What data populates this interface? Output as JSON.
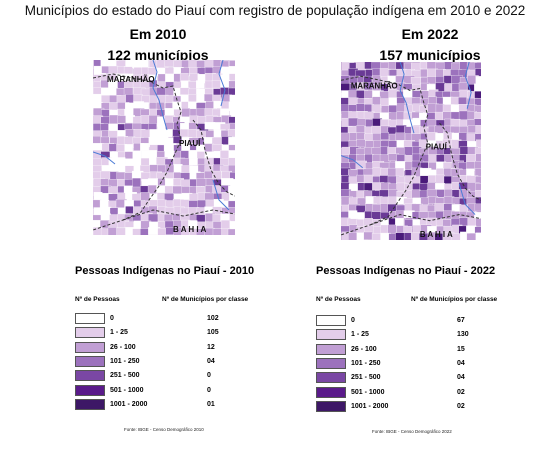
{
  "title": "Municípios do estado do Piauí com registro de população indígena em 2010 e 2022",
  "panels": [
    {
      "year_label": "Em 2010",
      "count_label": "122 municípios",
      "map_labels": {
        "maranhao": "MARANHÃO",
        "piaui": "PIAUÍ",
        "bahia": "B A H I A"
      },
      "legend_title": "Pessoas Indígenas no Piauí - 2010",
      "col_class": "Nº de  Pessoas",
      "col_count": "Nº de  Municípios por classe",
      "rows": [
        {
          "cls": "0",
          "count": "102",
          "color": "#ffffff"
        },
        {
          "cls": "1 - 25",
          "count": "105",
          "color": "#e3cdea"
        },
        {
          "cls": "26 - 100",
          "count": "12",
          "color": "#c19fd4"
        },
        {
          "cls": "101 - 250",
          "count": "04",
          "color": "#9c72bd"
        },
        {
          "cls": "251 - 500",
          "count": "0",
          "color": "#7a47a4"
        },
        {
          "cls": "501 - 1000",
          "count": "0",
          "color": "#5a1a8a"
        },
        {
          "cls": "1001 - 2000",
          "count": "01",
          "color": "#3d1766"
        }
      ],
      "source": "Fonte: IBGE - Censo Demográfico 2010"
    },
    {
      "year_label": "Em 2022",
      "count_label": "157 municípios",
      "map_labels": {
        "maranhao": "MARANHÃO",
        "piaui": "PIAUÍ",
        "bahia": "B A H I A"
      },
      "legend_title": "Pessoas Indígenas no Piauí - 2022",
      "col_class": "Nº de  Pessoas",
      "col_count": "Nº de  Municípios por classe",
      "rows": [
        {
          "cls": "0",
          "count": "67",
          "color": "#ffffff"
        },
        {
          "cls": "1 - 25",
          "count": "130",
          "color": "#e3cdea"
        },
        {
          "cls": "26 - 100",
          "count": "15",
          "color": "#c19fd4"
        },
        {
          "cls": "101 - 250",
          "count": "04",
          "color": "#9c72bd"
        },
        {
          "cls": "251 - 500",
          "count": "04",
          "color": "#7a47a4"
        },
        {
          "cls": "501 - 1000",
          "count": "02",
          "color": "#5a1a8a"
        },
        {
          "cls": "1001 - 2000",
          "count": "02",
          "color": "#3d1766"
        }
      ],
      "source": "Fonte: IBGE - Censo Demográfico 2022"
    }
  ]
}
